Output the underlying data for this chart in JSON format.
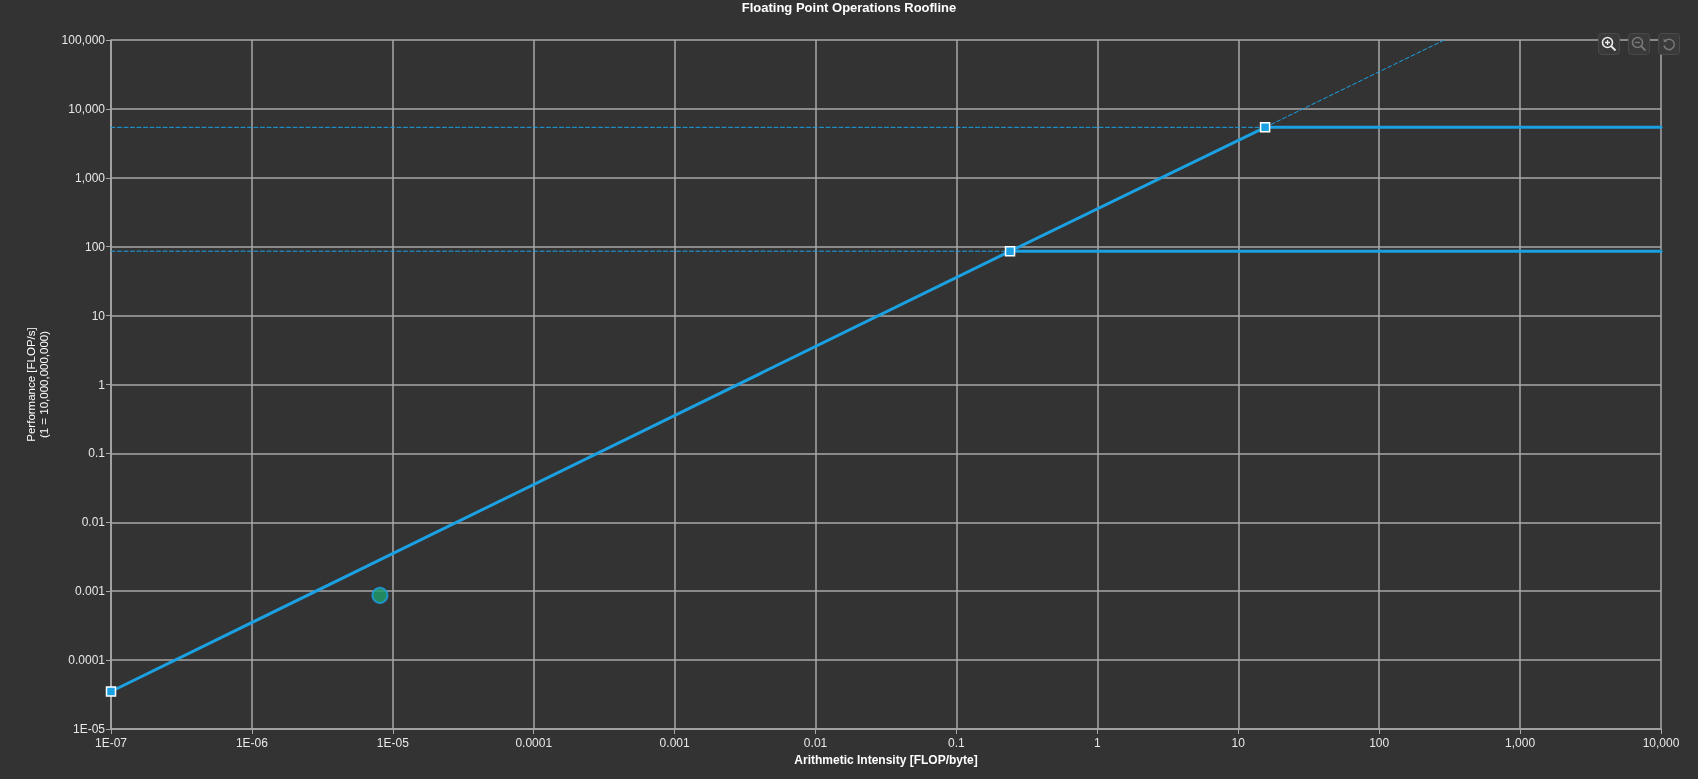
{
  "chart_data": {
    "type": "line",
    "title": "Floating Point Operations Roofline",
    "xlabel": "Arithmetic Intensity [FLOP/byte]",
    "ylabel": "Performance [FLOP/s]\n(1 = 10,000,000,000)",
    "log": "xy",
    "grid": true,
    "xlim": [
      1e-07,
      10000
    ],
    "ylim": [
      1e-05,
      100000
    ],
    "xticks": [
      {
        "value": 1e-07,
        "label": "1E-07"
      },
      {
        "value": 1e-06,
        "label": "1E-06"
      },
      {
        "value": 1e-05,
        "label": "1E-05"
      },
      0.0001,
      0.001,
      0.01,
      0.1,
      1,
      10,
      100,
      {
        "value": 1000,
        "label": "1,000"
      },
      {
        "value": 10000,
        "label": "10,000"
      }
    ],
    "yticks": [
      {
        "value": 1e-05,
        "label": "1E-05"
      },
      0.0001,
      0.001,
      0.01,
      0.1,
      1,
      10,
      100,
      {
        "value": 1000,
        "label": "1,000"
      },
      {
        "value": 10000,
        "label": "10,000"
      },
      {
        "value": 100000,
        "label": "100,000"
      }
    ],
    "series": [
      {
        "color": "#1ba1e2",
        "marker": "square",
        "line_style": "solid",
        "x": [
          1e-07,
          0.24,
          15.5
        ],
        "values": [
          3.5e-05,
          86,
          5400
        ]
      },
      {
        "color": "#1ba1e2",
        "marker": "none",
        "line_style": "solid",
        "x": [
          0.24,
          10000
        ],
        "values": [
          86,
          86
        ]
      },
      {
        "color": "#1ba1e2",
        "marker": "none",
        "line_style": "solid",
        "x": [
          15.5,
          10000
        ],
        "values": [
          5400,
          5400
        ]
      },
      {
        "color": "#1ba1e2",
        "marker": "none",
        "line_style": "dashed",
        "x": [
          1e-07,
          0.24
        ],
        "values": [
          86,
          86
        ]
      },
      {
        "color": "#1ba1e2",
        "marker": "none",
        "line_style": "dashed",
        "x": [
          1e-07,
          15.5
        ],
        "values": [
          5400,
          5400
        ]
      },
      {
        "color": "#1ba1e2",
        "marker": "none",
        "line_style": "dashed",
        "x": [
          15.5,
          290
        ],
        "values": [
          5400,
          100000
        ]
      },
      {
        "type": "scatter",
        "color": "#1e9e6c",
        "marker": "circle",
        "x": [
          8.1e-06
        ],
        "values": [
          0.00087
        ]
      }
    ]
  }
}
